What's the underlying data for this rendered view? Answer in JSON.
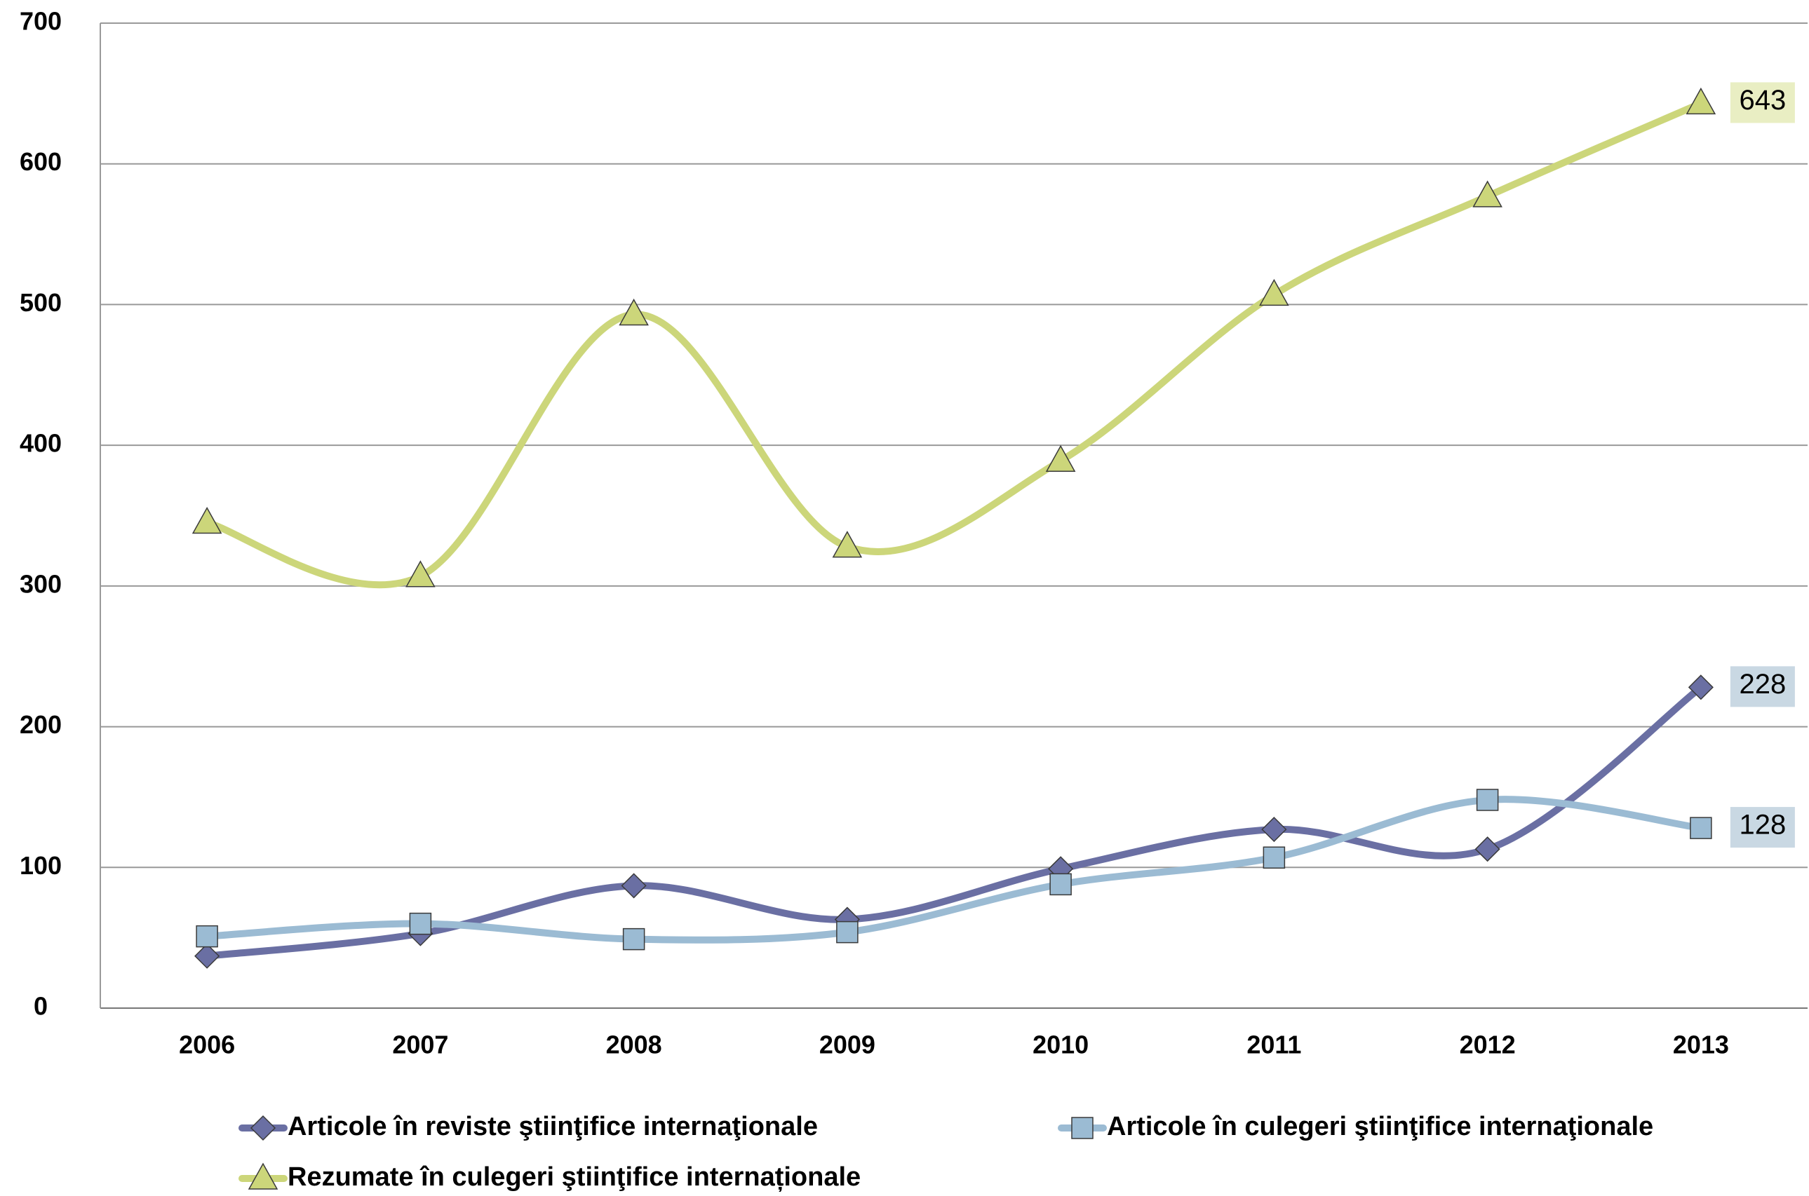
{
  "chart_data": {
    "type": "line",
    "categories": [
      "2006",
      "2007",
      "2008",
      "2009",
      "2010",
      "2011",
      "2012",
      "2013"
    ],
    "series": [
      {
        "name": "Articole în reviste ştiinţifice internaţionale",
        "color": "#6a6fa3",
        "marker": "diamond",
        "values": [
          37,
          53,
          87,
          63,
          99,
          127,
          113,
          228
        ]
      },
      {
        "name": "Articole în culegeri ştiinţifice internaţionale",
        "color": "#9bbbd3",
        "marker": "square",
        "values": [
          51,
          60,
          49,
          54,
          88,
          107,
          148,
          128
        ]
      },
      {
        "name": "Rezumate în culegeri ştiinţifice internaționale",
        "color": "#ccd67a",
        "marker": "triangle",
        "values": [
          345,
          307,
          493,
          328,
          389,
          507,
          577,
          643
        ]
      }
    ],
    "ylim": [
      0,
      700
    ],
    "yticks": [
      0,
      100,
      200,
      300,
      400,
      500,
      600,
      700
    ],
    "grid": true,
    "smooth": true,
    "legend": "bottom"
  }
}
